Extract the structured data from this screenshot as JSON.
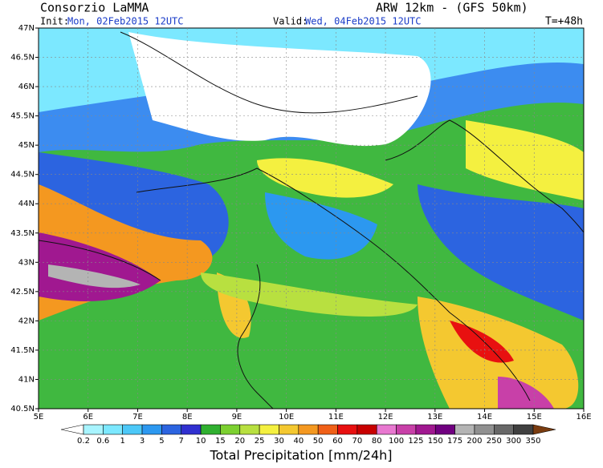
{
  "header": {
    "title": "Consorzio LaMMA",
    "model": "ARW 12km - (GFS 50km)",
    "init_label": "Init:",
    "init": "Mon, 02Feb2015 12UTC",
    "valid_label": "Valid:",
    "valid": "Wed, 04Feb2015 12UTC",
    "lead": "T=+48h"
  },
  "map": {
    "lat_labels": [
      "47N",
      "46.5N",
      "46N",
      "45.5N",
      "45N",
      "44.5N",
      "44N",
      "43.5N",
      "43N",
      "42.5N",
      "42N",
      "41.5N",
      "41N",
      "40.5N"
    ],
    "lon_labels": [
      "5E",
      "6E",
      "7E",
      "8E",
      "9E",
      "10E",
      "11E",
      "12E",
      "13E",
      "14E",
      "15E",
      "16E"
    ]
  },
  "colorbar": {
    "title": "Total Precipitation [mm/24h]",
    "labels": [
      "0.2",
      "0.6",
      "1",
      "3",
      "5",
      "7",
      "10",
      "15",
      "20",
      "25",
      "30",
      "40",
      "50",
      "60",
      "70",
      "80",
      "100",
      "125",
      "150",
      "175",
      "200",
      "250",
      "300",
      "350"
    ],
    "colors": [
      "#ffffff",
      "#a8f4ff",
      "#7ce8ff",
      "#4cc8f8",
      "#2c98f0",
      "#2c64e0",
      "#3030d0",
      "#30b030",
      "#7cd030",
      "#b8e040",
      "#f4f040",
      "#f4c830",
      "#f49820",
      "#f06018",
      "#e81010",
      "#c80000",
      "#e878d0",
      "#c840a8",
      "#a01890",
      "#700080",
      "#b4b4b4",
      "#909090",
      "#686868",
      "#404040",
      "#7a3c10"
    ]
  }
}
